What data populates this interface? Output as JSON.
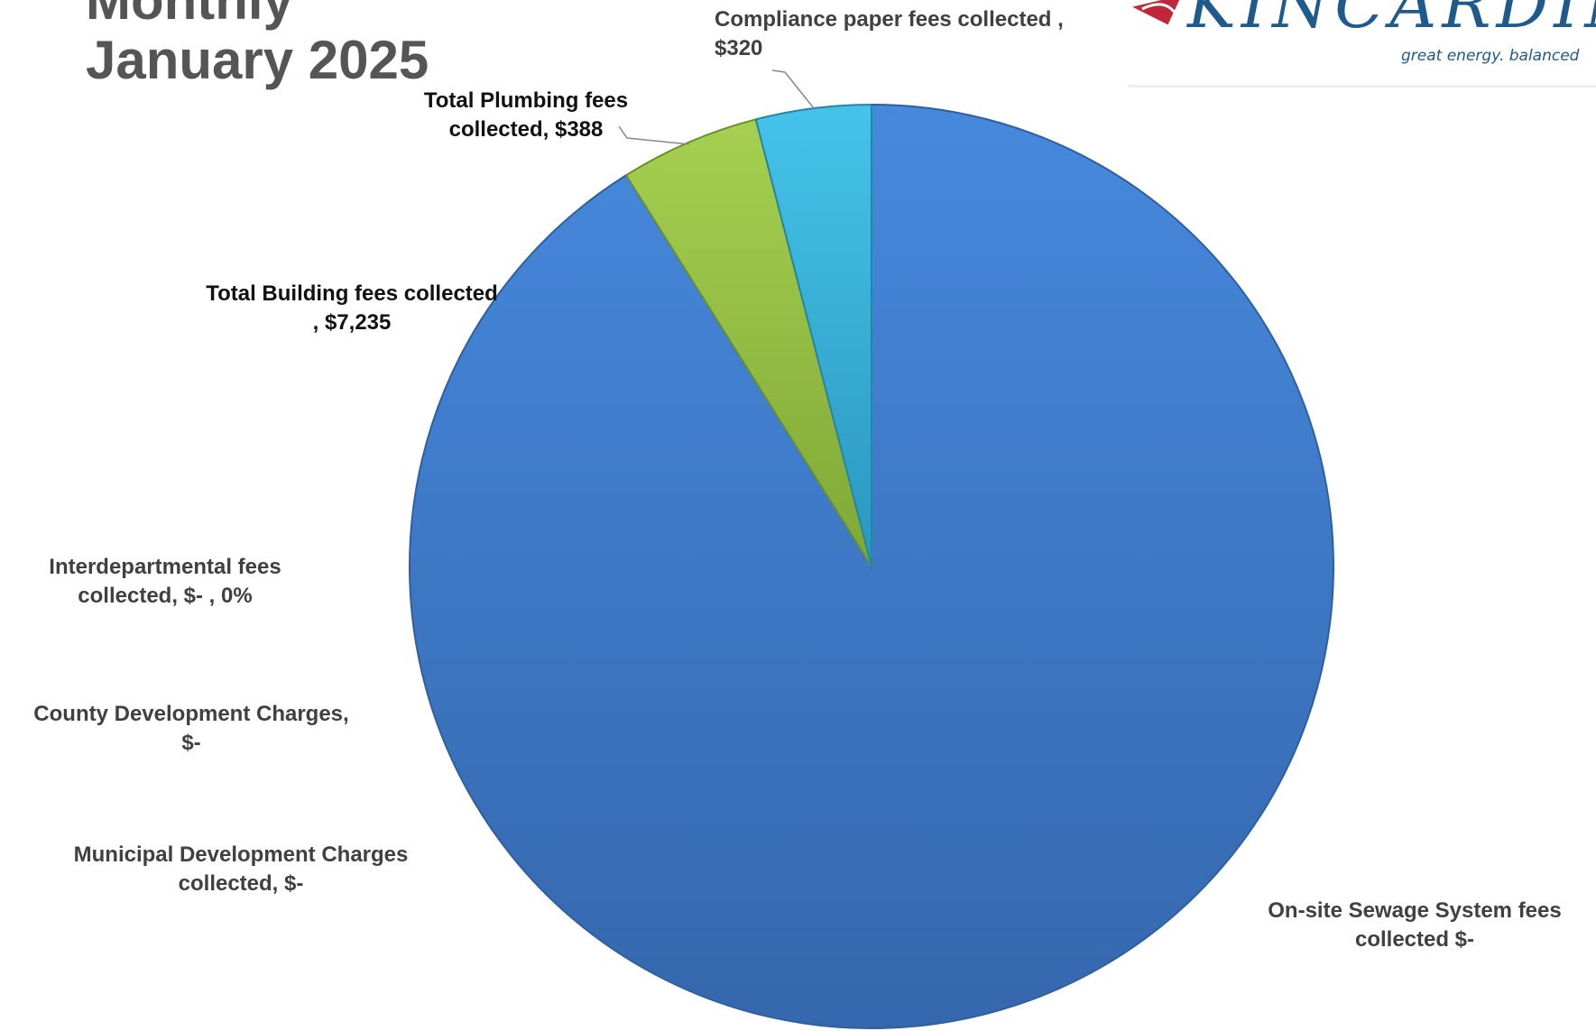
{
  "page": {
    "title_line1": "Monthly",
    "title_line2": "January 2025"
  },
  "logo": {
    "wordmark": "KINCARDINE",
    "tagline": "great energy. balanced"
  },
  "colors": {
    "title": "#555555",
    "label_dark": "#111111",
    "label_grey": "#404040",
    "building_slice": "#3f7dd1",
    "plumbing_slice": "#8fc041",
    "compliance_slice": "#35b1d9",
    "logo_blue": "#1e5a8c",
    "logo_red": "#c0283a"
  },
  "chart_data": {
    "type": "pie",
    "title": "",
    "series": [
      {
        "name": "Total Building fees collected",
        "value": 7235,
        "label_lines": [
          "Total Building fees collected",
          ",  $7,235"
        ]
      },
      {
        "name": "Total Plumbing fees collected",
        "value": 388,
        "label_lines": [
          "Total Plumbing fees",
          "collected,  $388"
        ]
      },
      {
        "name": "Compliance paper fees collected",
        "value": 320,
        "label_lines": [
          "Compliance paper fees collected ,",
          "$320"
        ]
      },
      {
        "name": "On-site Sewage System fees collected",
        "value": 0,
        "label_lines": [
          "On-site Sewage System fees",
          "collected  $-"
        ]
      },
      {
        "name": "Municipal Development Charges collected",
        "value": 0,
        "label_lines": [
          "Municipal Development Charges",
          "collected,  $-"
        ]
      },
      {
        "name": "County Development Charges",
        "value": 0,
        "label_lines": [
          "County Development Charges,",
          "$-"
        ]
      },
      {
        "name": "Interdepartmental fees collected",
        "value": 0,
        "label_lines": [
          "Interdepartmental fees",
          "collected,  $-   , 0%"
        ]
      }
    ],
    "legend": "none"
  }
}
